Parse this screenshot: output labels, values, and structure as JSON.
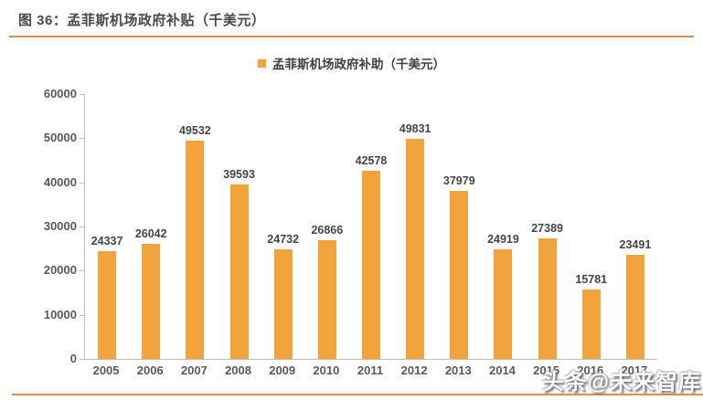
{
  "header": {
    "title": "图 36：孟菲斯机场政府补贴（千美元）"
  },
  "legend": {
    "label": "孟菲斯机场政府补助（千美元）"
  },
  "watermark": {
    "text": "头条@未来智库"
  },
  "colors": {
    "bar": "#F2A33C",
    "accent_line": "#D98F51",
    "axis": "#BFBFBF",
    "value_label": "#454545",
    "tick_label": "#595959",
    "title_text": "#4A4A4A"
  },
  "chart_data": {
    "type": "bar",
    "title": "孟菲斯机场政府补贴（千美元）",
    "categories": [
      "2005",
      "2006",
      "2007",
      "2008",
      "2009",
      "2010",
      "2011",
      "2012",
      "2013",
      "2014",
      "2015",
      "2016",
      "2017"
    ],
    "values": [
      24337,
      26042,
      49532,
      39593,
      24732,
      26866,
      42578,
      49831,
      37979,
      24919,
      27389,
      15781,
      23491
    ],
    "xlabel": "",
    "ylabel": "",
    "ylim": [
      0,
      60000
    ],
    "ytick_step": 10000,
    "ytick_labels": [
      "0",
      "10000",
      "20000",
      "30000",
      "40000",
      "50000",
      "60000"
    ],
    "grid": false,
    "value_labels_shown": true,
    "legend_entries": [
      "孟菲斯机场政府补助（千美元）"
    ],
    "legend_position": "top-center",
    "bar_color": "#F2A33C"
  }
}
